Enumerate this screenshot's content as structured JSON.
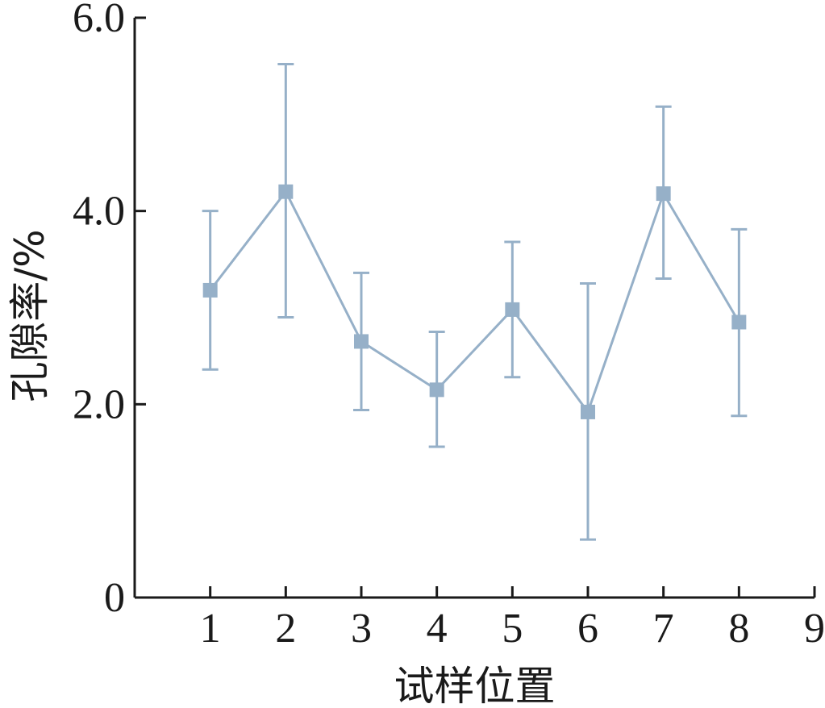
{
  "chart_data": {
    "type": "line",
    "title": "",
    "xlabel": "试样位置",
    "ylabel": "孔隙率/%",
    "xlim": [
      0,
      9
    ],
    "ylim": [
      0,
      6
    ],
    "x_ticks": [
      {
        "value": 1,
        "label": "1"
      },
      {
        "value": 2,
        "label": "2"
      },
      {
        "value": 3,
        "label": "3"
      },
      {
        "value": 4,
        "label": "4"
      },
      {
        "value": 5,
        "label": "5"
      },
      {
        "value": 6,
        "label": "6"
      },
      {
        "value": 7,
        "label": "7"
      },
      {
        "value": 8,
        "label": "8"
      },
      {
        "value": 9,
        "label": "9"
      }
    ],
    "y_ticks": [
      {
        "value": 0,
        "label": "0"
      },
      {
        "value": 2,
        "label": "2.0"
      },
      {
        "value": 4,
        "label": "4.0"
      },
      {
        "value": 6,
        "label": "6.0"
      }
    ],
    "grid": false,
    "legend": "none",
    "series": [
      {
        "color": "#96b0c8",
        "marker": "square",
        "points": [
          {
            "x": 1,
            "y": 3.18,
            "low": 2.36,
            "high": 4.0
          },
          {
            "x": 2,
            "y": 4.2,
            "low": 2.9,
            "high": 5.52
          },
          {
            "x": 3,
            "y": 2.65,
            "low": 1.94,
            "high": 3.36
          },
          {
            "x": 4,
            "y": 2.15,
            "low": 1.56,
            "high": 2.75
          },
          {
            "x": 5,
            "y": 2.98,
            "low": 2.28,
            "high": 3.68
          },
          {
            "x": 6,
            "y": 1.92,
            "low": 0.6,
            "high": 3.25
          },
          {
            "x": 7,
            "y": 4.18,
            "low": 3.3,
            "high": 5.08
          },
          {
            "x": 8,
            "y": 2.85,
            "low": 1.88,
            "high": 3.81
          }
        ]
      }
    ]
  }
}
